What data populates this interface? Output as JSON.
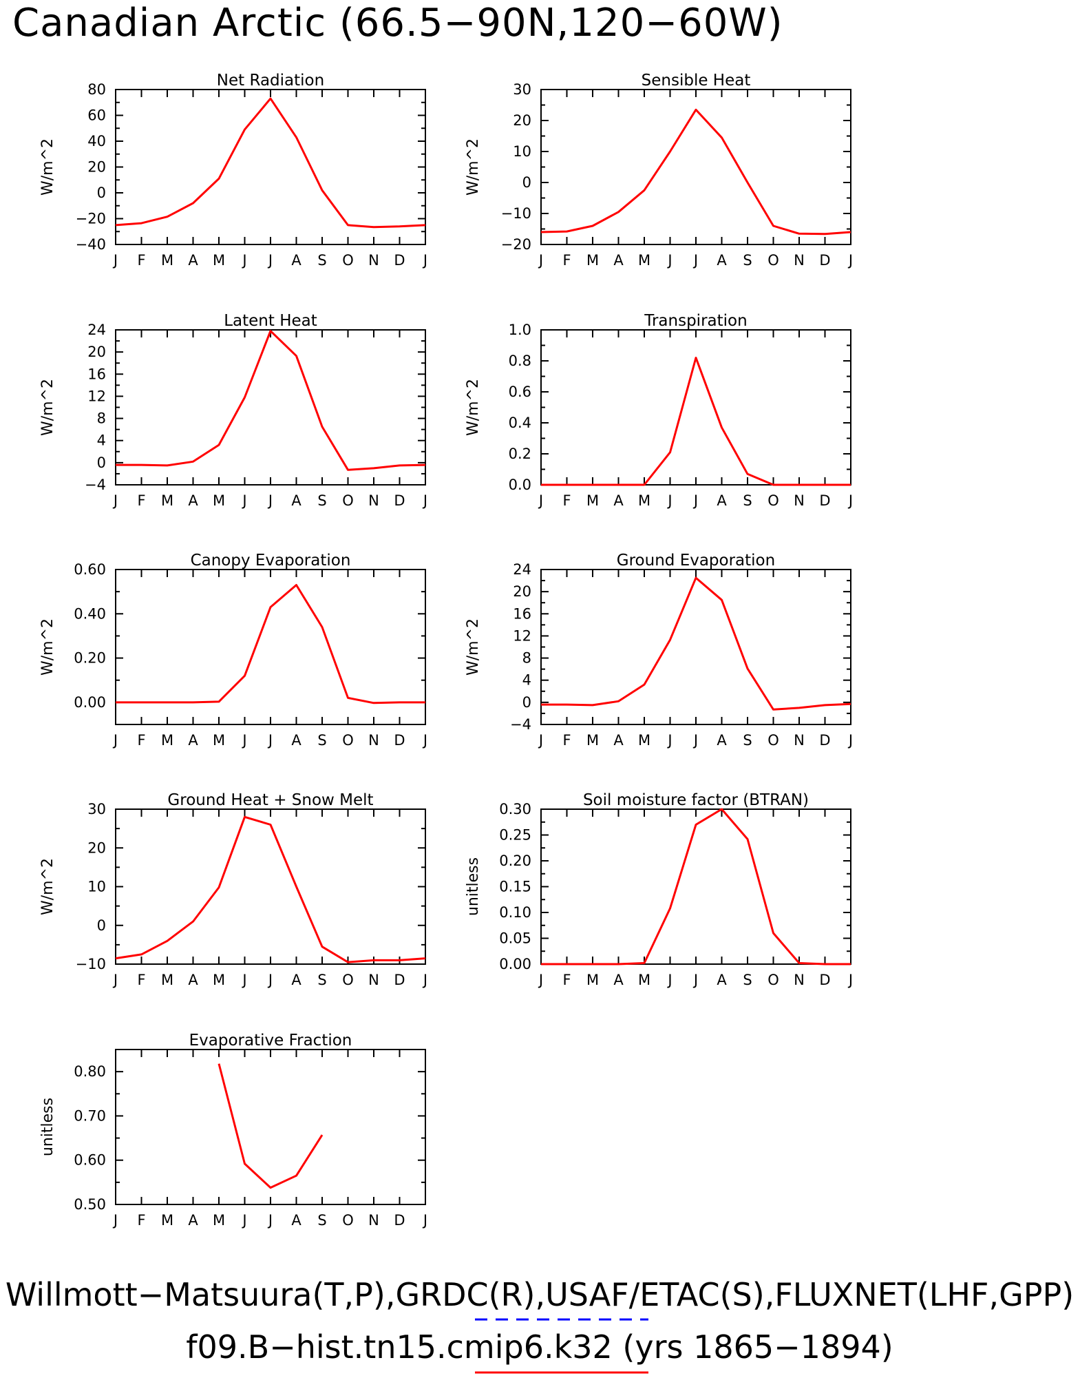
{
  "figure": {
    "title": "Canadian Arctic (66.5−90N,120−60W)",
    "footer_line1": "Willmott−Matsuura(T,P),GRDC(R),USAF/ETAC(S),FLUXNET(LHF,GPP)",
    "footer_line2": "f09.B−hist.tn15.cmip6.k32 (yrs 1865−1894)",
    "colors": {
      "model_line": "#ff0000",
      "obs_line": "#0000ff"
    }
  },
  "chart_data": [
    {
      "type": "line",
      "title": "Net Radiation",
      "ylabel": "W/m^2",
      "categories": [
        "J",
        "F",
        "M",
        "A",
        "M",
        "J",
        "J",
        "A",
        "S",
        "O",
        "N",
        "D",
        "J"
      ],
      "yticks": [
        "80",
        "60",
        "40",
        "20",
        "0",
        "−20",
        "−40"
      ],
      "ylim": [
        -40,
        80
      ],
      "series": [
        {
          "color": "#ff0000",
          "values": [
            -25,
            -23.5,
            -18.5,
            -8,
            11,
            49,
            73,
            43,
            2,
            -25,
            -26.5,
            -26,
            -25
          ]
        }
      ]
    },
    {
      "type": "line",
      "title": "Sensible Heat",
      "ylabel": "W/m^2",
      "categories": [
        "J",
        "F",
        "M",
        "A",
        "M",
        "J",
        "J",
        "A",
        "S",
        "O",
        "N",
        "D",
        "J"
      ],
      "yticks": [
        "30",
        "20",
        "10",
        "0",
        "−10",
        "−20"
      ],
      "ylim": [
        -20,
        30
      ],
      "series": [
        {
          "color": "#ff0000",
          "values": [
            -16,
            -15.8,
            -14,
            -9.5,
            -2.5,
            10,
            23.5,
            14.5,
            0,
            -14,
            -16.5,
            -16.6,
            -16
          ]
        }
      ]
    },
    {
      "type": "line",
      "title": "Latent Heat",
      "ylabel": "W/m^2",
      "categories": [
        "J",
        "F",
        "M",
        "A",
        "M",
        "J",
        "J",
        "A",
        "S",
        "O",
        "N",
        "D",
        "J"
      ],
      "yticks": [
        "24",
        "20",
        "16",
        "12",
        "8",
        "4",
        "0",
        "−4"
      ],
      "ylim": [
        -4,
        24
      ],
      "series": [
        {
          "color": "#ff0000",
          "values": [
            -0.4,
            -0.4,
            -0.5,
            0.2,
            3.2,
            11.8,
            23.8,
            19.3,
            6.5,
            -1.3,
            -1.0,
            -0.5,
            -0.4
          ]
        }
      ]
    },
    {
      "type": "line",
      "title": "Transpiration",
      "ylabel": "W/m^2",
      "categories": [
        "J",
        "F",
        "M",
        "A",
        "M",
        "J",
        "J",
        "A",
        "S",
        "O",
        "N",
        "D",
        "J"
      ],
      "yticks": [
        "1.0",
        "0.8",
        "0.6",
        "0.4",
        "0.2",
        "0.0"
      ],
      "ylim": [
        0,
        1
      ],
      "series": [
        {
          "color": "#ff0000",
          "values": [
            0,
            0,
            0,
            0,
            0,
            0.21,
            0.82,
            0.37,
            0.07,
            0,
            0,
            0,
            0
          ]
        }
      ]
    },
    {
      "type": "line",
      "title": "Canopy Evaporation",
      "ylabel": "W/m^2",
      "categories": [
        "J",
        "F",
        "M",
        "A",
        "M",
        "J",
        "J",
        "A",
        "S",
        "O",
        "N",
        "D",
        "J"
      ],
      "yticks": [
        "0.60",
        "0.40",
        "0.20",
        "0.00"
      ],
      "ylim": [
        -0.1,
        0.6
      ],
      "series": [
        {
          "color": "#ff0000",
          "values": [
            0,
            0,
            0,
            0,
            0.003,
            0.12,
            0.43,
            0.53,
            0.34,
            0.02,
            -0.003,
            0,
            0
          ]
        }
      ]
    },
    {
      "type": "line",
      "title": "Ground Evaporation",
      "ylabel": "W/m^2",
      "categories": [
        "J",
        "F",
        "M",
        "A",
        "M",
        "J",
        "J",
        "A",
        "S",
        "O",
        "N",
        "D",
        "J"
      ],
      "yticks": [
        "24",
        "20",
        "16",
        "12",
        "8",
        "4",
        "0",
        "−4"
      ],
      "ylim": [
        -4,
        24
      ],
      "series": [
        {
          "color": "#ff0000",
          "values": [
            -0.4,
            -0.4,
            -0.5,
            0.2,
            3.2,
            11.3,
            22.5,
            18.5,
            6.1,
            -1.3,
            -1.0,
            -0.5,
            -0.3
          ]
        }
      ]
    },
    {
      "type": "line",
      "title": "Ground Heat + Snow Melt",
      "ylabel": "W/m^2",
      "categories": [
        "J",
        "F",
        "M",
        "A",
        "M",
        "J",
        "J",
        "A",
        "S",
        "O",
        "N",
        "D",
        "J"
      ],
      "yticks": [
        "30",
        "20",
        "10",
        "0",
        "−10"
      ],
      "ylim": [
        -10,
        30
      ],
      "series": [
        {
          "color": "#ff0000",
          "values": [
            -8.5,
            -7.5,
            -4,
            1,
            9.8,
            28,
            26,
            10,
            -5.5,
            -9.5,
            -9,
            -9,
            -8.5
          ]
        }
      ]
    },
    {
      "type": "line",
      "title": "Soil moisture factor (BTRAN)",
      "ylabel": "unitless",
      "categories": [
        "J",
        "F",
        "M",
        "A",
        "M",
        "J",
        "J",
        "A",
        "S",
        "O",
        "N",
        "D",
        "J"
      ],
      "yticks": [
        "0.30",
        "0.25",
        "0.20",
        "0.15",
        "0.10",
        "0.05",
        "0.00"
      ],
      "ylim": [
        0,
        0.3
      ],
      "series": [
        {
          "color": "#ff0000",
          "values": [
            0,
            0,
            0,
            0,
            0.002,
            0.108,
            0.27,
            0.3,
            0.242,
            0.06,
            0.002,
            0,
            0
          ]
        }
      ]
    },
    {
      "type": "line",
      "title": "Evaporative Fraction",
      "ylabel": "unitless",
      "categories": [
        "J",
        "F",
        "M",
        "A",
        "M",
        "J",
        "J",
        "A",
        "S",
        "O",
        "N",
        "D",
        "J"
      ],
      "yticks": [
        "0.80",
        "0.70",
        "0.60",
        "0.50"
      ],
      "ylim": [
        0.5,
        0.85
      ],
      "series": [
        {
          "color": "#ff0000",
          "values": [
            null,
            null,
            null,
            null,
            0.818,
            0.592,
            0.538,
            0.565,
            0.657,
            null,
            null,
            null,
            null
          ]
        }
      ]
    }
  ]
}
